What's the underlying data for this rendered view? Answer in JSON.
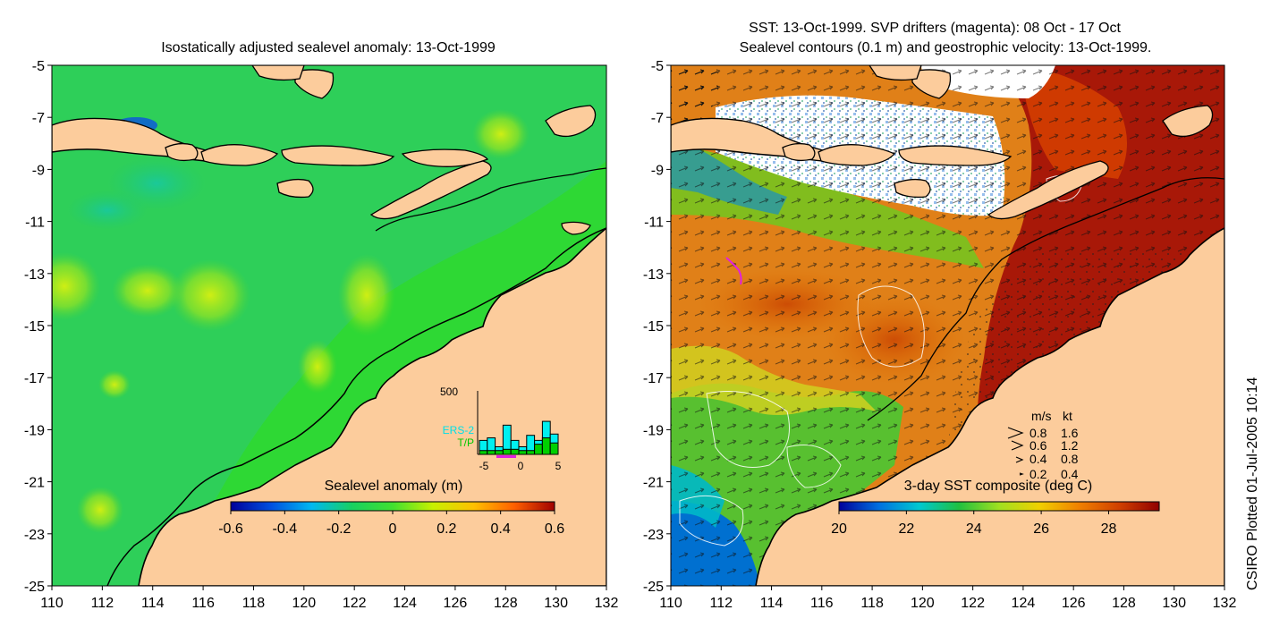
{
  "left_panel": {
    "title": "Isostatically adjusted sealevel anomaly: 13-Oct-1999",
    "colorbar": {
      "title": "Sealevel anomaly (m)",
      "ticks": [
        "-0.6",
        "-0.4",
        "-0.2",
        "0",
        "0.2",
        "0.4",
        "0.6"
      ],
      "range": [
        -0.6,
        0.6
      ],
      "colors": [
        "#00009a",
        "#0050e0",
        "#00b8f0",
        "#18d060",
        "#40e030",
        "#c8f000",
        "#ffc000",
        "#ff6000",
        "#a00000"
      ]
    },
    "inset": {
      "ymax_label": "500",
      "legend": [
        "ERS-2",
        "T/P"
      ],
      "xticks": [
        "-5",
        "0",
        "5"
      ],
      "ers2_counts": [
        110,
        130,
        60,
        230,
        110,
        60,
        150,
        110,
        260,
        160
      ],
      "tp_counts": [
        30,
        30,
        30,
        40,
        40,
        30,
        30,
        80,
        130,
        90
      ]
    }
  },
  "right_panel": {
    "title_line1": "SST: 13-Oct-1999. SVP drifters (magenta): 08 Oct - 17 Oct",
    "title_line2": "Sealevel contours (0.1 m) and geostrophic velocity: 13-Oct-1999.",
    "colorbar": {
      "title": "3-day SST composite (deg C)",
      "ticks": [
        "20",
        "22",
        "24",
        "26",
        "28"
      ],
      "range": [
        20,
        29.5
      ],
      "colors": [
        "#00009a",
        "#0070e0",
        "#00c8d0",
        "#20c040",
        "#a0e020",
        "#f0d000",
        "#f08000",
        "#d04000",
        "#900000"
      ]
    },
    "velocity_key": {
      "header_ms": "m/s",
      "header_kt": "kt",
      "rows": [
        {
          "ms": "0.8",
          "kt": "1.6"
        },
        {
          "ms": "0.6",
          "kt": "1.2"
        },
        {
          "ms": "0.4",
          "kt": "0.8"
        },
        {
          "ms": "0.2",
          "kt": "0.4"
        }
      ]
    }
  },
  "axes": {
    "x_ticks": [
      "110",
      "112",
      "114",
      "116",
      "118",
      "120",
      "122",
      "124",
      "126",
      "128",
      "130",
      "132"
    ],
    "y_ticks": [
      "-5",
      "-7",
      "-9",
      "-11",
      "-13",
      "-15",
      "-17",
      "-19",
      "-21",
      "-23",
      "-25"
    ],
    "lon_range": [
      110,
      132
    ],
    "lat_range": [
      -25,
      -5
    ]
  },
  "colors": {
    "land": "#fccc9c",
    "sea_background": "#30d030",
    "contour": "#000000"
  },
  "credit": "CSIRO Plotted 01-Jul-2005 10:14"
}
